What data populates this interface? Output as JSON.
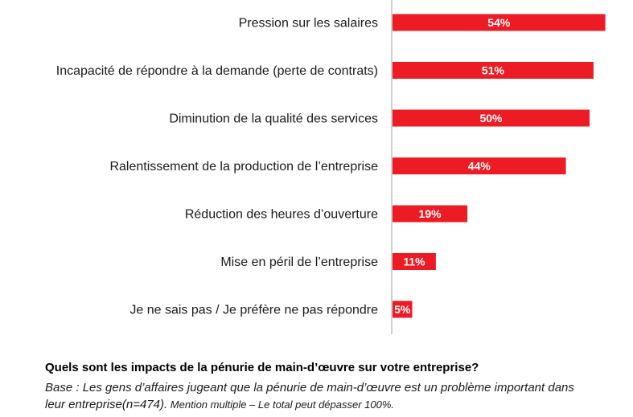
{
  "chart_data": {
    "type": "bar",
    "orientation": "horizontal",
    "categories": [
      "Pression sur les salaires",
      "Incapacité de répondre à la demande (perte de contrats)",
      "Diminution de la qualité des services",
      "Ralentissement de la production de l’entreprise",
      "Réduction des heures d’ouverture",
      "Mise en péril de l’entreprise",
      "Je ne sais pas / Je préfère ne pas répondre"
    ],
    "values": [
      54,
      51,
      50,
      44,
      19,
      11,
      5
    ],
    "value_labels": [
      "54%",
      "51%",
      "50%",
      "44%",
      "19%",
      "11%",
      "5%"
    ],
    "bar_color": "#ed1c24",
    "axis_line_color": "#bfbfbf",
    "grid": false,
    "legend": "none"
  },
  "caption": {
    "question": "Quels sont les impacts de la pénurie de main-d’œuvre sur votre entreprise?",
    "base": "Base : Les gens d’affaires jugeant que la pénurie de main-d’œuvre est un problème important dans leur entreprise(n=474).",
    "note": " Mention multiple – Le total peut dépasser 100%."
  }
}
